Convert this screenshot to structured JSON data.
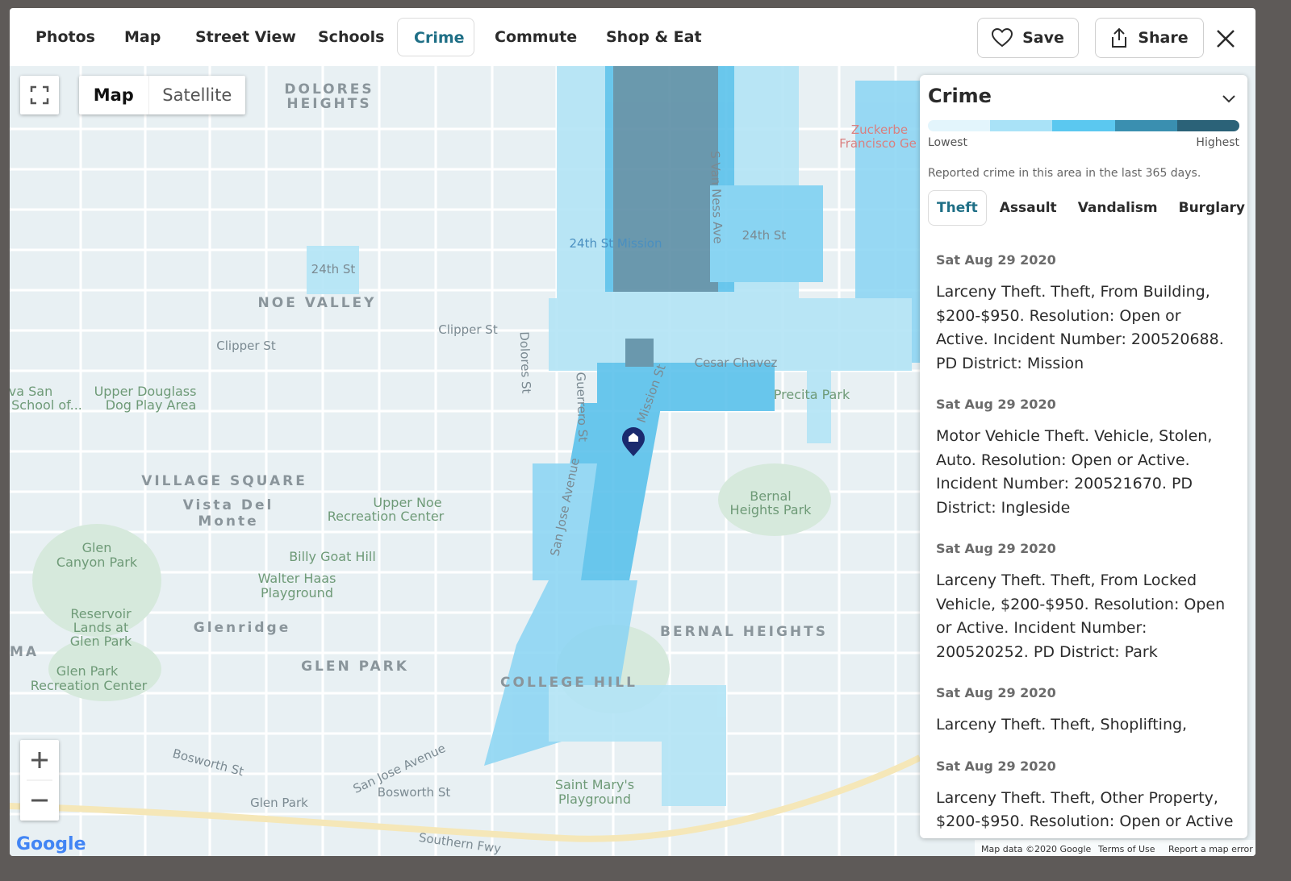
{
  "nav": {
    "tabs": [
      "Photos",
      "Map",
      "Street View",
      "Schools",
      "Crime",
      "Commute",
      "Shop & Eat"
    ],
    "save": "Save",
    "share": "Share"
  },
  "map_controls": {
    "map": "Map",
    "satellite": "Satellite"
  },
  "panel": {
    "title": "Crime",
    "legend_low": "Lowest",
    "legend_high": "Highest",
    "description": "Reported crime in this area in the last 365 days.",
    "filters": [
      "Theft",
      "Assault",
      "Vandalism",
      "Burglary"
    ],
    "incidents": [
      {
        "date": "Sat Aug 29 2020",
        "text": "Larceny Theft. Theft, From Building, $200-$950. Resolution: Open or Active. Incident Number: 200520688. PD District: Mission"
      },
      {
        "date": "Sat Aug 29 2020",
        "text": "Motor Vehicle Theft. Vehicle, Stolen, Auto. Resolution: Open or Active. Incident Number: 200521670. PD District: Ingleside"
      },
      {
        "date": "Sat Aug 29 2020",
        "text": "Larceny Theft. Theft, From Locked Vehicle, $200-$950. Resolution: Open or Active. Incident Number: 200520252. PD District: Park"
      },
      {
        "date": "Sat Aug 29 2020",
        "text": "Larceny Theft. Theft, Shoplifting,"
      },
      {
        "date": "Sat Aug 29 2020",
        "text": "Larceny Theft. Theft, Other Property, $200-$950. Resolution: Open or Active"
      }
    ]
  },
  "map": {
    "labels": [
      "DOLORES",
      "HEIGHTS",
      "NOE VALLEY",
      "VILLAGE SQUARE",
      "Vista Del",
      "Monte",
      "Glenridge",
      "GLEN PARK",
      "COLLEGE HILL",
      "BERNAL HEIGHTS",
      "Precita Park",
      "Bernal",
      "Heights Park",
      "Upper Douglass",
      "Dog Play Area",
      "Upper Noe",
      "Recreation Center",
      "Billy Goat Hill",
      "Walter Haas",
      "Playground",
      "Glen",
      "Canyon Park",
      "Reservoir",
      "Lands at",
      "Glen Park",
      "Glen Park",
      "Recreation Center",
      "Saint Mary's",
      "Playground",
      "Glen Park",
      "24th St Mission",
      "Zuckerbe",
      "Francisco Ge",
      "Southern Fwy",
      "Cesar Chavez",
      "24th St",
      "24th St",
      "Clipper St",
      "Clipper St",
      "Bosworth St",
      "Bosworth St",
      "va San",
      "School of...",
      "MA",
      "Dolores St",
      "Guerrero St",
      "San Jose Avenue",
      "Mission St",
      "S Van Ness Ave",
      "San Jose Avenue"
    ],
    "logo": "Google",
    "footer": [
      "Map data ©2020 Google",
      "Terms of Use",
      "Report a map error"
    ]
  }
}
